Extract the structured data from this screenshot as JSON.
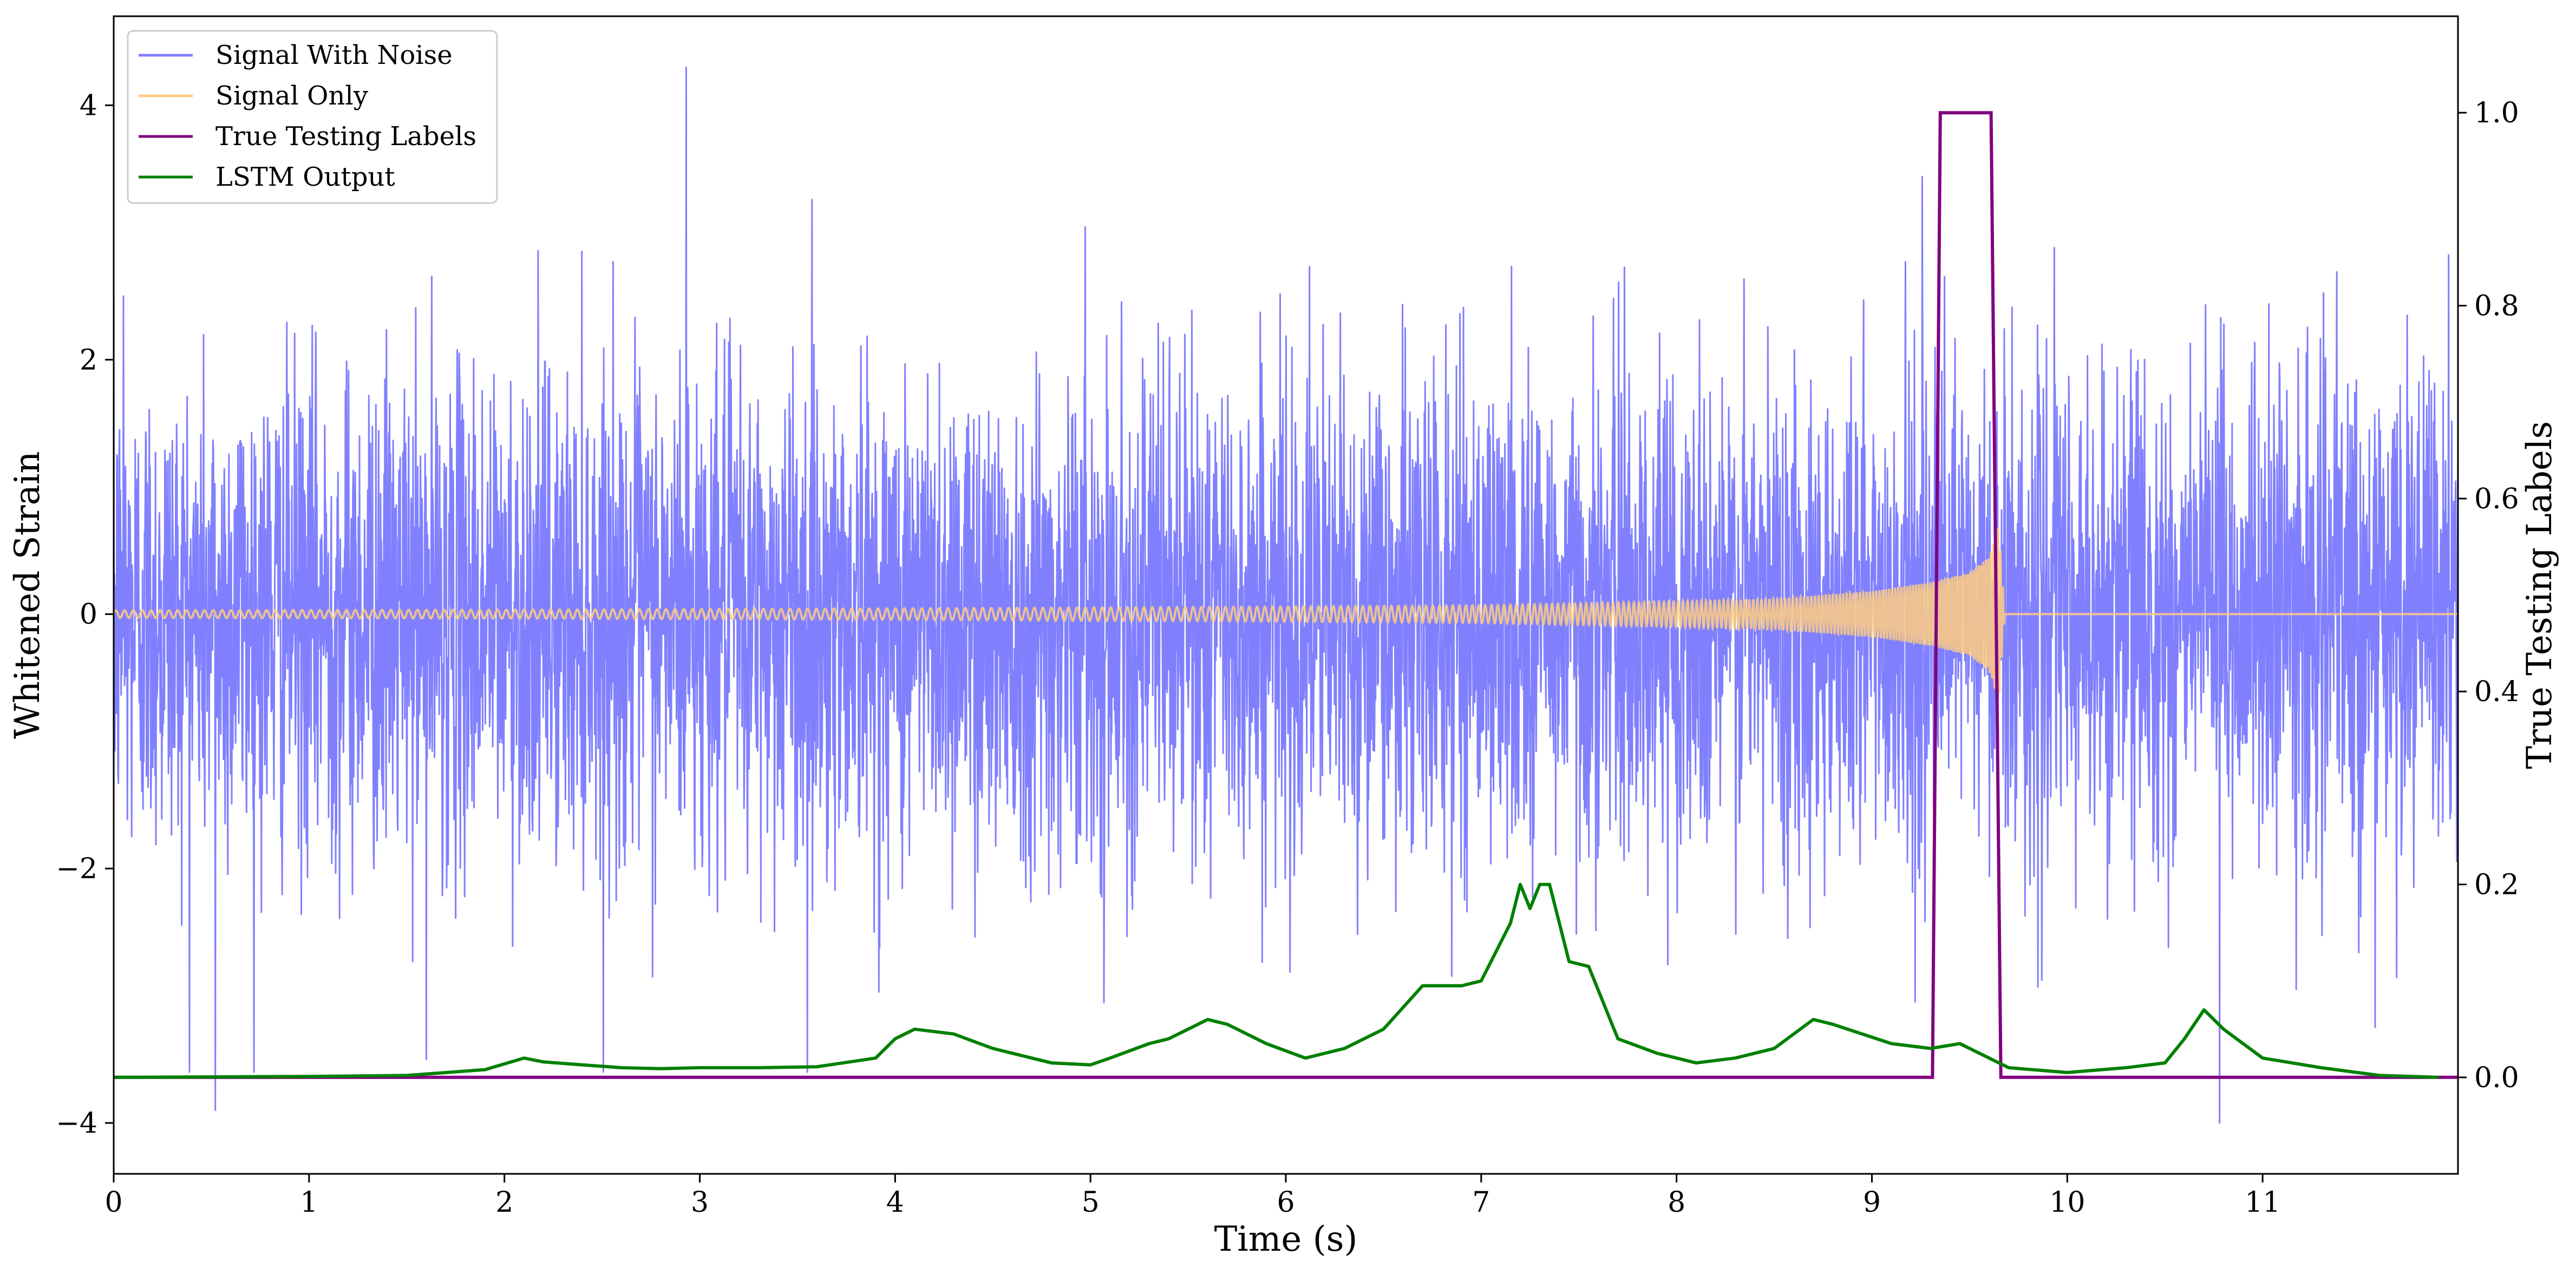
{
  "chart_data": {
    "type": "line",
    "title": "",
    "xlabel": "Time (s)",
    "ylabel": "Whitened Strain",
    "y2label": "True Testing Labels",
    "xlim": [
      0,
      12
    ],
    "ylim": [
      -4.4,
      4.7
    ],
    "y2lim": [
      -0.1,
      1.1
    ],
    "x_ticks": [
      0,
      1,
      2,
      3,
      4,
      5,
      6,
      7,
      8,
      9,
      10,
      11
    ],
    "y_ticks": [
      -4,
      -2,
      0,
      2,
      4
    ],
    "y2_ticks": [
      0.0,
      0.2,
      0.4,
      0.6,
      0.8,
      1.0
    ],
    "x_tick_labels": [
      "0",
      "1",
      "2",
      "3",
      "4",
      "5",
      "6",
      "7",
      "8",
      "9",
      "10",
      "11"
    ],
    "y_tick_labels": [
      "−4",
      "−2",
      "0",
      "2",
      "4"
    ],
    "y2_tick_labels": [
      "0.0",
      "0.2",
      "0.4",
      "0.6",
      "0.8",
      "1.0"
    ],
    "grid": false,
    "legend_position": "top-left",
    "series": [
      {
        "name": "Signal With Noise",
        "axis": "left",
        "color": "#8080ff",
        "description_values": "dense noise, typical range -1.6 to 1.9, peaks near 4.3 and -3.9",
        "peaks": [
          [
            0.52,
            -3.9
          ],
          [
            2.93,
            4.3
          ],
          [
            10.78,
            -4.0
          ],
          [
            1.6,
            -3.5
          ],
          [
            3.55,
            -3.6
          ],
          [
            0.05,
            2.5
          ]
        ]
      },
      {
        "name": "Signal Only",
        "axis": "left",
        "color": "#ffcc80",
        "envelope": [
          [
            0,
            0.03
          ],
          [
            2,
            0.035
          ],
          [
            4,
            0.045
          ],
          [
            6,
            0.06
          ],
          [
            7,
            0.07
          ],
          [
            8,
            0.1
          ],
          [
            8.5,
            0.12
          ],
          [
            9.0,
            0.18
          ],
          [
            9.3,
            0.25
          ],
          [
            9.5,
            0.33
          ],
          [
            9.6,
            0.45
          ],
          [
            9.65,
            0.7
          ],
          [
            9.68,
            0.0
          ],
          [
            12,
            0.0
          ]
        ]
      },
      {
        "name": "True Testing Labels",
        "axis": "right",
        "color": "#800080",
        "x": [
          0,
          9.31,
          9.35,
          9.61,
          9.66,
          12
        ],
        "y": [
          0,
          0,
          1,
          1,
          0,
          0
        ]
      },
      {
        "name": "LSTM Output",
        "axis": "right",
        "color": "#008000",
        "x": [
          0,
          1.0,
          1.5,
          1.9,
          2.1,
          2.2,
          2.4,
          2.6,
          2.8,
          3.0,
          3.3,
          3.6,
          3.9,
          4.0,
          4.1,
          4.3,
          4.5,
          4.6,
          4.8,
          5.0,
          5.1,
          5.3,
          5.4,
          5.6,
          5.7,
          5.9,
          6.1,
          6.3,
          6.5,
          6.7,
          6.9,
          7.0,
          7.05,
          7.15,
          7.2,
          7.25,
          7.3,
          7.35,
          7.45,
          7.55,
          7.7,
          7.9,
          8.1,
          8.3,
          8.5,
          8.7,
          8.8,
          8.95,
          9.1,
          9.3,
          9.45,
          9.55,
          9.7,
          10.0,
          10.3,
          10.5,
          10.6,
          10.7,
          10.8,
          11.0,
          11.3,
          11.6,
          11.9
        ],
        "y": [
          0.0,
          0.001,
          0.002,
          0.008,
          0.02,
          0.016,
          0.013,
          0.01,
          0.009,
          0.01,
          0.01,
          0.011,
          0.02,
          0.04,
          0.05,
          0.045,
          0.03,
          0.025,
          0.015,
          0.013,
          0.02,
          0.035,
          0.04,
          0.06,
          0.055,
          0.035,
          0.02,
          0.03,
          0.05,
          0.095,
          0.095,
          0.1,
          0.12,
          0.16,
          0.2,
          0.175,
          0.2,
          0.2,
          0.12,
          0.115,
          0.04,
          0.025,
          0.015,
          0.02,
          0.03,
          0.06,
          0.055,
          0.045,
          0.035,
          0.03,
          0.035,
          0.025,
          0.01,
          0.005,
          0.01,
          0.015,
          0.04,
          0.07,
          0.05,
          0.02,
          0.01,
          0.002,
          0.0
        ]
      }
    ]
  }
}
